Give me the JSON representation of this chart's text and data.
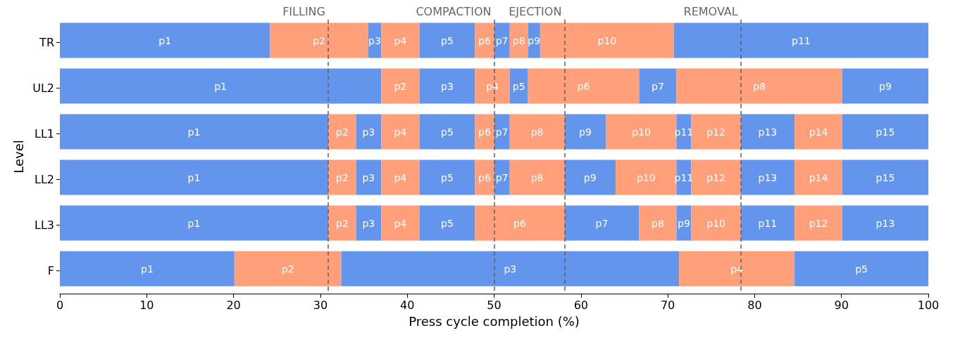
{
  "chart_data": {
    "type": "bar",
    "orientation": "horizontal",
    "stacked": true,
    "xlabel": "Press cycle completion (%)",
    "ylabel": "Level",
    "categories": [
      "TR",
      "UL2",
      "LL1",
      "LL2",
      "LL3",
      "F"
    ],
    "xlim": [
      0,
      100
    ],
    "xticks": [
      0,
      10,
      20,
      30,
      40,
      50,
      60,
      70,
      80,
      90,
      100
    ],
    "grid": false,
    "legend": false,
    "series": [
      {
        "name": "p1",
        "color": "#6495ed",
        "values": [
          24.2,
          37.0,
          30.9,
          30.9,
          30.9,
          20.1
        ]
      },
      {
        "name": "p2",
        "color": "#ffa07a",
        "values": [
          11.3,
          4.4,
          3.2,
          3.2,
          3.2,
          12.3
        ]
      },
      {
        "name": "p3",
        "color": "#6495ed",
        "values": [
          1.5,
          6.4,
          2.9,
          2.9,
          2.9,
          38.9
        ]
      },
      {
        "name": "p4",
        "color": "#ffa07a",
        "values": [
          4.4,
          4.0,
          4.4,
          4.4,
          4.4,
          13.3
        ]
      },
      {
        "name": "p5",
        "color": "#6495ed",
        "values": [
          6.4,
          2.1,
          6.4,
          6.4,
          6.4,
          15.4
        ]
      },
      {
        "name": "p6",
        "color": "#ffa07a",
        "values": [
          2.2,
          12.8,
          2.2,
          2.2,
          10.3,
          null
        ]
      },
      {
        "name": "p7",
        "color": "#6495ed",
        "values": [
          1.8,
          4.3,
          1.8,
          1.8,
          8.6,
          null
        ]
      },
      {
        "name": "p8",
        "color": "#ffa07a",
        "values": [
          2.1,
          19.1,
          6.3,
          6.3,
          4.3,
          null
        ]
      },
      {
        "name": "p9",
        "color": "#6495ed",
        "values": [
          1.4,
          9.9,
          4.8,
          5.9,
          1.7,
          null
        ]
      },
      {
        "name": "p10",
        "color": "#ffa07a",
        "values": [
          15.4,
          null,
          8.1,
          7.0,
          5.7,
          null
        ]
      },
      {
        "name": "p11",
        "color": "#6495ed",
        "values": [
          29.3,
          null,
          1.7,
          1.7,
          6.2,
          null
        ]
      },
      {
        "name": "p12",
        "color": "#ffa07a",
        "values": [
          null,
          null,
          5.7,
          5.7,
          5.5,
          null
        ]
      },
      {
        "name": "p13",
        "color": "#6495ed",
        "values": [
          null,
          null,
          6.2,
          6.2,
          9.9,
          null
        ]
      },
      {
        "name": "p14",
        "color": "#ffa07a",
        "values": [
          null,
          null,
          5.5,
          5.5,
          null,
          null
        ]
      },
      {
        "name": "p15",
        "color": "#6495ed",
        "values": [
          null,
          null,
          9.9,
          9.9,
          null,
          null
        ]
      }
    ],
    "ref_lines": [
      {
        "axis": "x",
        "value": 30.9,
        "label": "FILLING",
        "color": "#606060",
        "line_style": "dashed"
      },
      {
        "axis": "x",
        "value": 50.0,
        "label": "COMPACTION",
        "color": "#606060",
        "line_style": "dashed"
      },
      {
        "axis": "x",
        "value": 58.1,
        "label": "EJECTION",
        "color": "#606060",
        "line_style": "dashed"
      },
      {
        "axis": "x",
        "value": 78.4,
        "label": "REMOVAL",
        "color": "#606060",
        "line_style": "dashed"
      }
    ]
  }
}
